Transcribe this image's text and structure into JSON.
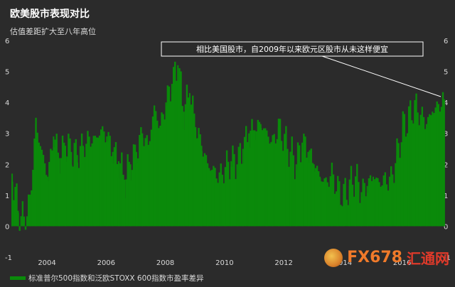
{
  "title": "欧美股市表现对比",
  "subtitle": "估值差距扩大至八年高位",
  "annotation": "相比美国股市，自2009年以来欧元区股市从未这样便宜",
  "legend_label": "标准普尔500指数和泛欧STOXX 600指数市盈率差异",
  "watermark": {
    "brand": "FX678",
    "brand_cn": "汇通网"
  },
  "colors": {
    "background": "#2b2b2b",
    "series": "#0a8a0a",
    "text": "#d9d9d9"
  },
  "chart_data": {
    "type": "bar",
    "xlabel": "",
    "ylabel": "",
    "ylim": [
      -1,
      6
    ],
    "yticks": [
      "-1",
      "0",
      "1",
      "2",
      "3",
      "4",
      "5",
      "6"
    ],
    "xticks": [
      "2004",
      "2006",
      "2008",
      "2010",
      "2012",
      "2014",
      "2016"
    ],
    "grid": false,
    "legend": "bottom-left",
    "series": [
      {
        "name": "标准普尔500指数和泛欧STOXX 600指数市盈率差异",
        "x": [
          2002.8,
          2003.0,
          2003.2,
          2003.4,
          2003.6,
          2003.8,
          2004.0,
          2004.2,
          2004.4,
          2004.6,
          2004.8,
          2005.0,
          2005.2,
          2005.4,
          2005.6,
          2005.8,
          2006.0,
          2006.2,
          2006.4,
          2006.6,
          2006.8,
          2007.0,
          2007.2,
          2007.4,
          2007.6,
          2007.8,
          2008.0,
          2008.2,
          2008.4,
          2008.6,
          2008.8,
          2009.0,
          2009.2,
          2009.4,
          2009.6,
          2009.8,
          2010.0,
          2010.2,
          2010.4,
          2010.6,
          2010.8,
          2011.0,
          2011.2,
          2011.4,
          2011.6,
          2011.8,
          2012.0,
          2012.2,
          2012.4,
          2012.6,
          2012.8,
          2013.0,
          2013.2,
          2013.4,
          2013.6,
          2013.8,
          2014.0,
          2014.2,
          2014.4,
          2014.6,
          2014.8,
          2015.0,
          2015.2,
          2015.4,
          2015.6,
          2015.8,
          2016.0,
          2016.2,
          2016.4,
          2016.6,
          2016.8,
          2017.0,
          2017.2,
          2017.4
        ],
        "values": [
          1.7,
          0.5,
          0.2,
          0.8,
          3.3,
          2.4,
          1.6,
          2.9,
          2.2,
          2.6,
          2.4,
          2.3,
          2.6,
          2.8,
          2.8,
          3.1,
          2.9,
          2.4,
          2.1,
          1.5,
          2.0,
          2.4,
          3.0,
          2.6,
          3.8,
          3.2,
          4.0,
          4.6,
          5.2,
          3.7,
          4.3,
          3.2,
          2.6,
          2.0,
          1.8,
          1.6,
          1.9,
          2.1,
          2.0,
          2.5,
          3.0,
          3.1,
          3.3,
          3.0,
          2.7,
          3.2,
          2.8,
          2.4,
          2.0,
          2.7,
          2.4,
          2.0,
          1.6,
          1.4,
          1.7,
          1.2,
          1.0,
          1.3,
          1.6,
          1.1,
          1.3,
          1.6,
          1.4,
          1.5,
          1.5,
          2.3,
          3.2,
          3.5,
          3.9,
          3.6,
          3.3,
          3.7,
          3.9,
          4.1
        ]
      }
    ]
  }
}
